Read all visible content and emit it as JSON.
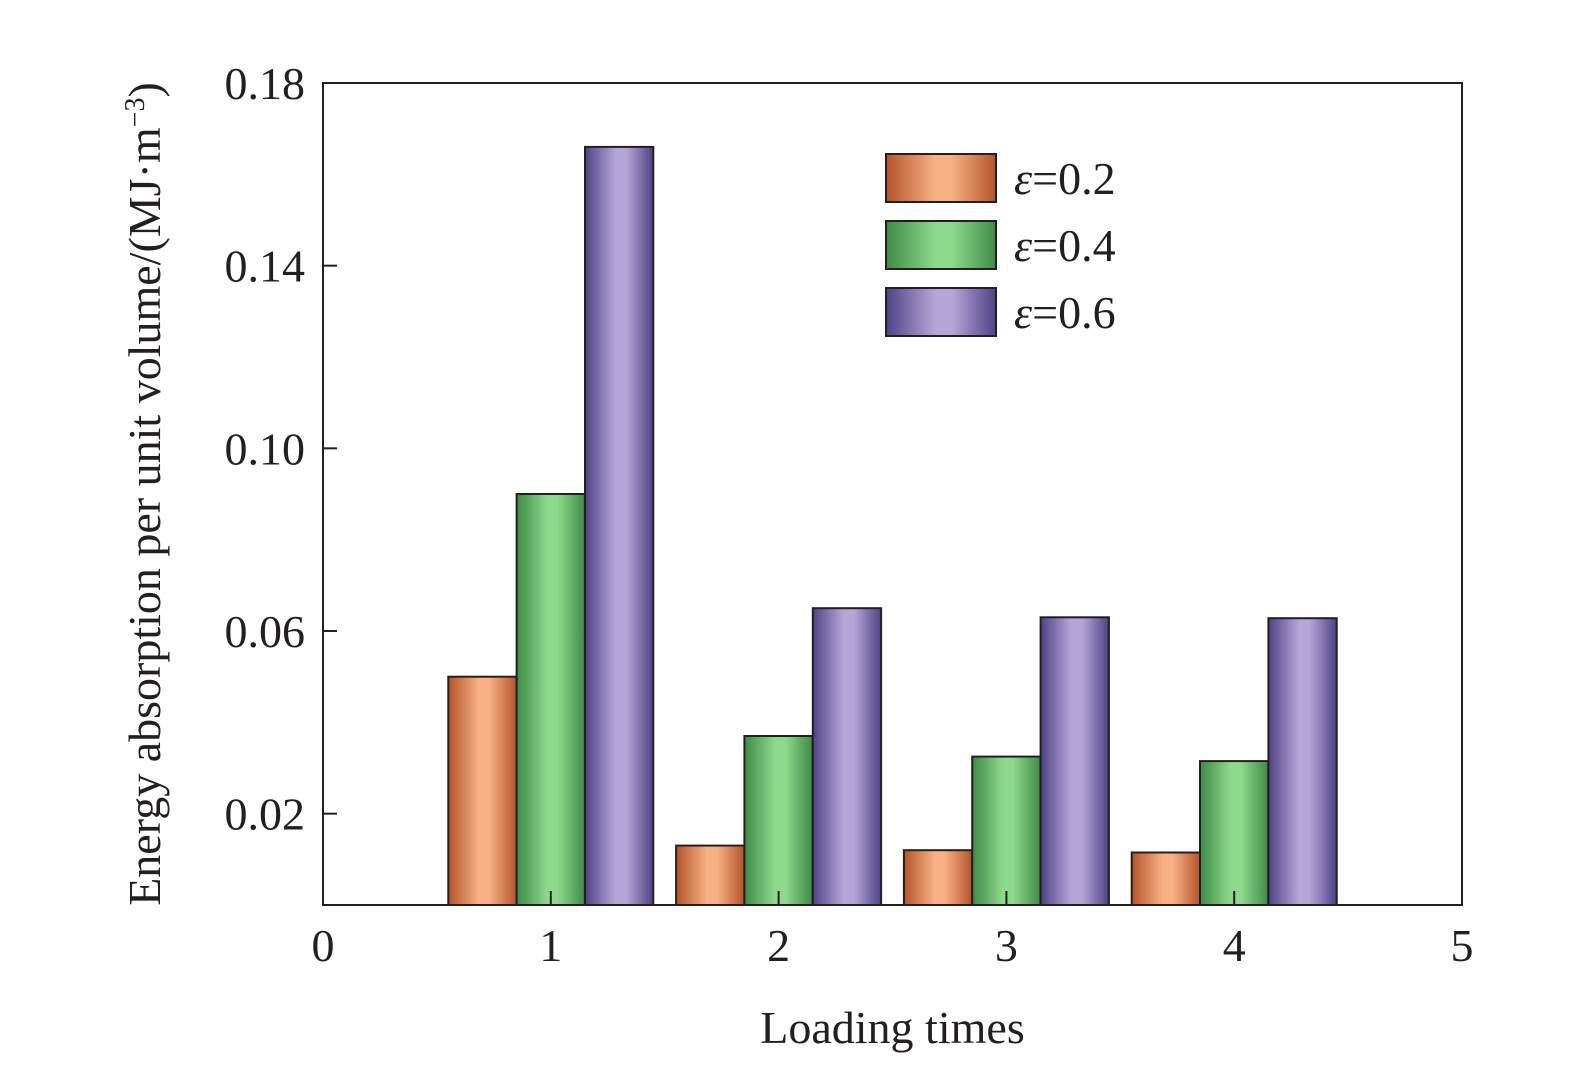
{
  "chart_data": {
    "type": "bar",
    "xlabel": "Loading times",
    "ylabel": "Energy absorption per unit volume/(MJ·m",
    "ylabel_sup": "−3",
    "ylabel_close": ")",
    "xlim": [
      0,
      5
    ],
    "ylim": [
      0,
      0.18
    ],
    "x_ticks": [
      "0",
      "1",
      "2",
      "3",
      "4",
      "5"
    ],
    "y_ticks": [
      "0.02",
      "0.06",
      "0.10",
      "0.14",
      "0.18"
    ],
    "grid": false,
    "legend_position": "top-right",
    "categories": [
      1,
      2,
      3,
      4
    ],
    "series": [
      {
        "name": "ε=0.2",
        "symbol": "ε",
        "label_value": "=0.2",
        "values": [
          0.05,
          0.013,
          0.012,
          0.0115
        ],
        "colors": {
          "edge": "#b5532a",
          "mid": "#f7b184"
        }
      },
      {
        "name": "ε=0.4",
        "symbol": "ε",
        "label_value": "=0.4",
        "values": [
          0.09,
          0.037,
          0.0325,
          0.0315
        ],
        "colors": {
          "edge": "#3f8a46",
          "mid": "#8ed98c"
        }
      },
      {
        "name": "ε=0.6",
        "symbol": "ε",
        "label_value": "=0.6",
        "values": [
          0.166,
          0.065,
          0.063,
          0.0628
        ],
        "colors": {
          "edge": "#4e4286",
          "mid": "#b6a6d8"
        }
      }
    ]
  }
}
